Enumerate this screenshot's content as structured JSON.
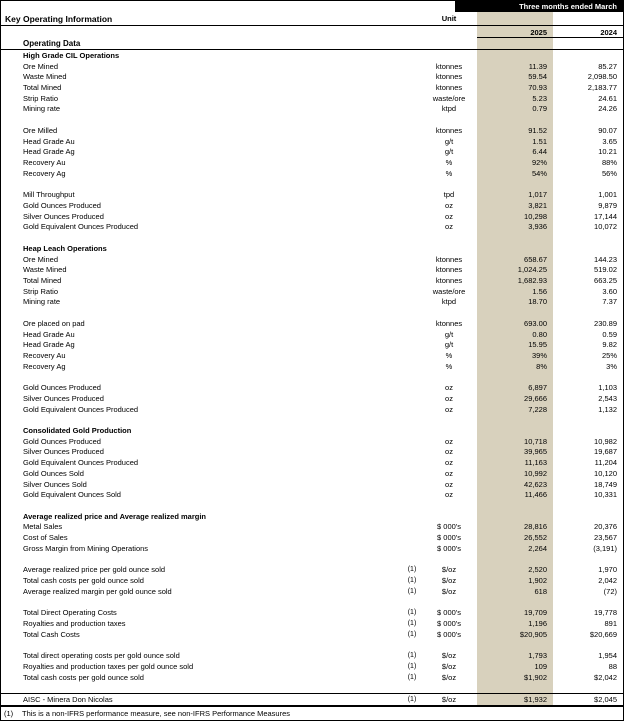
{
  "header": {
    "title": "Key Operating Information",
    "period_label": "Three months ended March",
    "unit_label": "Unit",
    "year_current": "2025",
    "year_prior": "2024",
    "group_title": "Operating Data"
  },
  "colors": {
    "highlight_column_bg": "#d8d1bd",
    "period_bar_bg": "#000000",
    "period_bar_text": "#ffffff"
  },
  "rows": [
    {
      "type": "section",
      "label": "High Grade CIL Operations"
    },
    {
      "type": "data",
      "label": "Ore Mined",
      "fn": "",
      "unit": "ktonnes",
      "current": "11.39",
      "prior": "85.27"
    },
    {
      "type": "data",
      "label": "Waste Mined",
      "fn": "",
      "unit": "ktonnes",
      "current": "59.54",
      "prior": "2,098.50"
    },
    {
      "type": "data",
      "label": "Total Mined",
      "fn": "",
      "unit": "ktonnes",
      "current": "70.93",
      "prior": "2,183.77"
    },
    {
      "type": "data",
      "label": "Strip Ratio",
      "fn": "",
      "unit": "waste/ore",
      "current": "5.23",
      "prior": "24.61"
    },
    {
      "type": "data",
      "label": "Mining rate",
      "fn": "",
      "unit": "ktpd",
      "current": "0.79",
      "prior": "24.26"
    },
    {
      "type": "spacer"
    },
    {
      "type": "data",
      "label": "Ore Milled",
      "fn": "",
      "unit": "ktonnes",
      "current": "91.52",
      "prior": "90.07"
    },
    {
      "type": "data",
      "label": "Head Grade Au",
      "fn": "",
      "unit": "g/t",
      "current": "1.51",
      "prior": "3.65"
    },
    {
      "type": "data",
      "label": "Head Grade Ag",
      "fn": "",
      "unit": "g/t",
      "current": "6.44",
      "prior": "10.21"
    },
    {
      "type": "data",
      "label": "Recovery Au",
      "fn": "",
      "unit": "%",
      "current": "92%",
      "prior": "88%"
    },
    {
      "type": "data",
      "label": "Recovery Ag",
      "fn": "",
      "unit": "%",
      "current": "54%",
      "prior": "56%"
    },
    {
      "type": "spacer"
    },
    {
      "type": "data",
      "label": "Mill Throughput",
      "fn": "",
      "unit": "tpd",
      "current": "1,017",
      "prior": "1,001"
    },
    {
      "type": "data",
      "label": "Gold Ounces Produced",
      "fn": "",
      "unit": "oz",
      "current": "3,821",
      "prior": "9,879"
    },
    {
      "type": "data",
      "label": "Silver Ounces Produced",
      "fn": "",
      "unit": "oz",
      "current": "10,298",
      "prior": "17,144"
    },
    {
      "type": "data",
      "label": "Gold Equivalent Ounces Produced",
      "fn": "",
      "unit": "oz",
      "current": "3,936",
      "prior": "10,072"
    },
    {
      "type": "spacer"
    },
    {
      "type": "section",
      "label": "Heap Leach Operations"
    },
    {
      "type": "data",
      "label": "Ore Mined",
      "fn": "",
      "unit": "ktonnes",
      "current": "658.67",
      "prior": "144.23"
    },
    {
      "type": "data",
      "label": "Waste Mined",
      "fn": "",
      "unit": "ktonnes",
      "current": "1,024.25",
      "prior": "519.02"
    },
    {
      "type": "data",
      "label": "Total Mined",
      "fn": "",
      "unit": "ktonnes",
      "current": "1,682.93",
      "prior": "663.25"
    },
    {
      "type": "data",
      "label": "Strip Ratio",
      "fn": "",
      "unit": "waste/ore",
      "current": "1.56",
      "prior": "3.60"
    },
    {
      "type": "data",
      "label": "Mining rate",
      "fn": "",
      "unit": "ktpd",
      "current": "18.70",
      "prior": "7.37"
    },
    {
      "type": "spacer"
    },
    {
      "type": "data",
      "label": "Ore placed on pad",
      "fn": "",
      "unit": "ktonnes",
      "current": "693.00",
      "prior": "230.89"
    },
    {
      "type": "data",
      "label": "Head Grade Au",
      "fn": "",
      "unit": "g/t",
      "current": "0.80",
      "prior": "0.59"
    },
    {
      "type": "data",
      "label": "Head Grade Ag",
      "fn": "",
      "unit": "g/t",
      "current": "15.95",
      "prior": "9.82"
    },
    {
      "type": "data",
      "label": "Recovery Au",
      "fn": "",
      "unit": "%",
      "current": "39%",
      "prior": "25%"
    },
    {
      "type": "data",
      "label": "Recovery Ag",
      "fn": "",
      "unit": "%",
      "current": "8%",
      "prior": "3%"
    },
    {
      "type": "spacer"
    },
    {
      "type": "data",
      "label": "Gold Ounces Produced",
      "fn": "",
      "unit": "oz",
      "current": "6,897",
      "prior": "1,103"
    },
    {
      "type": "data",
      "label": "Silver Ounces Produced",
      "fn": "",
      "unit": "oz",
      "current": "29,666",
      "prior": "2,543"
    },
    {
      "type": "data",
      "label": "Gold Equivalent Ounces Produced",
      "fn": "",
      "unit": "oz",
      "current": "7,228",
      "prior": "1,132"
    },
    {
      "type": "spacer"
    },
    {
      "type": "section",
      "label": "Consolidated Gold Production"
    },
    {
      "type": "data",
      "label": "Gold Ounces Produced",
      "fn": "",
      "unit": "oz",
      "current": "10,718",
      "prior": "10,982"
    },
    {
      "type": "data",
      "label": "Silver Ounces Produced",
      "fn": "",
      "unit": "oz",
      "current": "39,965",
      "prior": "19,687"
    },
    {
      "type": "data",
      "label": "Gold Equivalent Ounces Produced",
      "fn": "",
      "unit": "oz",
      "current": "11,163",
      "prior": "11,204"
    },
    {
      "type": "data",
      "label": "Gold Ounces Sold",
      "fn": "",
      "unit": "oz",
      "current": "10,992",
      "prior": "10,120"
    },
    {
      "type": "data",
      "label": "Silver Ounces Sold",
      "fn": "",
      "unit": "oz",
      "current": "42,623",
      "prior": "18,749"
    },
    {
      "type": "data",
      "label": "Gold Equivalent Ounces Sold",
      "fn": "",
      "unit": "oz",
      "current": "11,466",
      "prior": "10,331"
    },
    {
      "type": "spacer"
    },
    {
      "type": "section",
      "label": "Average realized price and Average realized margin"
    },
    {
      "type": "data",
      "label": "Metal Sales",
      "fn": "",
      "unit": "$ 000's",
      "current": "28,816",
      "prior": "20,376"
    },
    {
      "type": "data",
      "label": "Cost of Sales",
      "fn": "",
      "unit": "$ 000's",
      "current": "26,552",
      "prior": "23,567"
    },
    {
      "type": "data",
      "label": "Gross Margin from Mining Operations",
      "fn": "",
      "unit": "$ 000's",
      "current": "2,264",
      "prior": "(3,191)"
    },
    {
      "type": "spacer"
    },
    {
      "type": "data",
      "label": "Average realized price per gold ounce sold",
      "fn": "(1)",
      "unit": "$/oz",
      "current": "2,520",
      "prior": "1,970"
    },
    {
      "type": "data",
      "label": "Total cash costs per gold ounce sold",
      "fn": "(1)",
      "unit": "$/oz",
      "current": "1,902",
      "prior": "2,042"
    },
    {
      "type": "data",
      "label": "Average realized margin per gold ounce sold",
      "fn": "(1)",
      "unit": "$/oz",
      "current": "618",
      "prior": "(72)"
    },
    {
      "type": "spacer"
    },
    {
      "type": "data",
      "label": "Total Direct Operating Costs",
      "fn": "(1)",
      "unit": "$ 000's",
      "current": "19,709",
      "prior": "19,778"
    },
    {
      "type": "data",
      "label": "Royalties and production taxes",
      "fn": "(1)",
      "unit": "$ 000's",
      "current": "1,196",
      "prior": "891"
    },
    {
      "type": "data",
      "label": "Total Cash Costs",
      "fn": "(1)",
      "unit": "$ 000's",
      "current": "$20,905",
      "prior": "$20,669"
    },
    {
      "type": "spacer"
    },
    {
      "type": "data",
      "label": "Total direct operating costs per gold ounce sold",
      "fn": "(1)",
      "unit": "$/oz",
      "current": "1,793",
      "prior": "1,954"
    },
    {
      "type": "data",
      "label": "Royalties and production taxes per gold ounce sold",
      "fn": "(1)",
      "unit": "$/oz",
      "current": "109",
      "prior": "88"
    },
    {
      "type": "data",
      "label": "Total cash costs per gold ounce sold",
      "fn": "(1)",
      "unit": "$/oz",
      "current": "$1,902",
      "prior": "$2,042"
    },
    {
      "type": "spacer"
    },
    {
      "type": "data",
      "label": "AISC - Minera Don Nicolas",
      "fn": "(1)",
      "unit": "$/oz",
      "current": "$1,932",
      "prior": "$2,045",
      "topline": true
    }
  ],
  "footnote": {
    "marker": "(1)",
    "text": "This is a non-IFRS performance measure, see non-IFRS Performance Measures"
  }
}
